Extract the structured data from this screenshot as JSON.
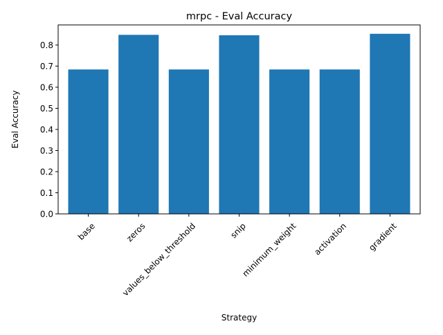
{
  "chart_data": {
    "type": "bar",
    "title": "mrpc - Eval Accuracy",
    "xlabel": "Strategy",
    "ylabel": "Eval Accuracy",
    "categories": [
      "base",
      "zeros",
      "values_below_threshold",
      "snip",
      "minimum_weight",
      "activation",
      "gradient"
    ],
    "values": [
      0.684,
      0.848,
      0.684,
      0.846,
      0.684,
      0.684,
      0.853
    ],
    "ylim": [
      0,
      0.895
    ],
    "yticks": [
      0.0,
      0.1,
      0.2,
      0.3,
      0.4,
      0.5,
      0.6,
      0.7,
      0.8
    ],
    "ytick_labels": [
      "0.0",
      "0.1",
      "0.2",
      "0.3",
      "0.4",
      "0.5",
      "0.6",
      "0.7",
      "0.8"
    ],
    "grid": false,
    "legend": "none",
    "bar_color": "#1f77b4",
    "xtick_rotation_deg": 45
  }
}
